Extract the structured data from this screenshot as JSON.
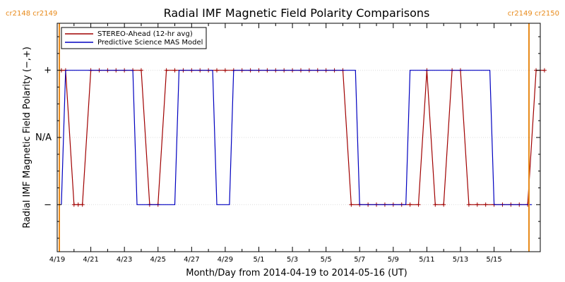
{
  "chart_data": {
    "type": "line",
    "title": "Radial IMF Magnetic Field Polarity Comparisons",
    "xlabel": "Month/Day from 2014-04-19 to 2014-05-16 (UT)",
    "ylabel": "Radial IMF Magnetic Field Polarity (−,+)",
    "x_start": "2014-04-19",
    "xlim": [
      "2014-04-19",
      "2014-05-17T18:00"
    ],
    "y_categories": [
      "−",
      "N/A",
      "+"
    ],
    "ylim": [
      -1.7,
      1.7
    ],
    "x_tick_labels": [
      "4/19",
      "4/21",
      "4/23",
      "4/25",
      "4/27",
      "4/29",
      "5/1",
      "5/3",
      "5/5",
      "5/7",
      "5/9",
      "5/11",
      "5/13",
      "5/15"
    ],
    "carrington_left": "cr2148 cr2149",
    "carrington_right": "cr2149 cr2150",
    "carrington_colour": "#e88a1a",
    "legend_position": "top-left",
    "series": [
      {
        "name": "STEREO-Ahead (12-hr avg)",
        "color": "#a00000",
        "marker": "+",
        "points": [
          [
            "2014-04-19T06:00",
            1
          ],
          [
            "2014-04-19T12:00",
            1
          ],
          [
            "2014-04-20T00:00",
            -1
          ],
          [
            "2014-04-20T06:00",
            -1
          ],
          [
            "2014-04-20T12:00",
            -1
          ],
          [
            "2014-04-21T00:00",
            1
          ],
          [
            "2014-04-21T12:00",
            1
          ],
          [
            "2014-04-22T00:00",
            1
          ],
          [
            "2014-04-22T12:00",
            1
          ],
          [
            "2014-04-23T00:00",
            1
          ],
          [
            "2014-04-23T12:00",
            1
          ],
          [
            "2014-04-24T00:00",
            1
          ],
          [
            "2014-04-24T12:00",
            -1
          ],
          [
            "2014-04-25T00:00",
            -1
          ],
          [
            "2014-04-25T12:00",
            1
          ],
          [
            "2014-04-26T00:00",
            1
          ],
          [
            "2014-04-26T12:00",
            1
          ],
          [
            "2014-04-27T00:00",
            1
          ],
          [
            "2014-04-27T12:00",
            1
          ],
          [
            "2014-04-28T00:00",
            1
          ],
          [
            "2014-04-28T12:00",
            1
          ],
          [
            "2014-04-29T00:00",
            1
          ],
          [
            "2014-04-29T12:00",
            1
          ],
          [
            "2014-04-30T00:00",
            1
          ],
          [
            "2014-04-30T12:00",
            1
          ],
          [
            "2014-05-01T00:00",
            1
          ],
          [
            "2014-05-01T12:00",
            1
          ],
          [
            "2014-05-02T00:00",
            1
          ],
          [
            "2014-05-02T12:00",
            1
          ],
          [
            "2014-05-03T00:00",
            1
          ],
          [
            "2014-05-03T12:00",
            1
          ],
          [
            "2014-05-04T00:00",
            1
          ],
          [
            "2014-05-04T12:00",
            1
          ],
          [
            "2014-05-05T00:00",
            1
          ],
          [
            "2014-05-05T12:00",
            1
          ],
          [
            "2014-05-06T00:00",
            1
          ],
          [
            "2014-05-06T12:00",
            -1
          ],
          [
            "2014-05-07T00:00",
            -1
          ],
          [
            "2014-05-07T12:00",
            -1
          ],
          [
            "2014-05-08T00:00",
            -1
          ],
          [
            "2014-05-08T12:00",
            -1
          ],
          [
            "2014-05-09T00:00",
            -1
          ],
          [
            "2014-05-09T12:00",
            -1
          ],
          [
            "2014-05-10T00:00",
            -1
          ],
          [
            "2014-05-10T12:00",
            -1
          ],
          [
            "2014-05-11T00:00",
            1
          ],
          [
            "2014-05-11T12:00",
            -1
          ],
          [
            "2014-05-12T00:00",
            -1
          ],
          [
            "2014-05-12T12:00",
            1
          ],
          [
            "2014-05-13T00:00",
            1
          ],
          [
            "2014-05-13T12:00",
            -1
          ],
          [
            "2014-05-14T00:00",
            -1
          ],
          [
            "2014-05-14T12:00",
            -1
          ],
          [
            "2014-05-15T00:00",
            -1
          ],
          [
            "2014-05-15T12:00",
            -1
          ],
          [
            "2014-05-16T00:00",
            -1
          ],
          [
            "2014-05-16T12:00",
            -1
          ],
          [
            "2014-05-17T00:00",
            -1
          ],
          [
            "2014-05-17T12:00",
            1
          ],
          [
            "2014-05-18T00:00",
            1
          ]
        ]
      },
      {
        "name": "Predictive Science MAS Model",
        "color": "#0000c0",
        "marker": "",
        "points": [
          [
            "2014-04-19T06:00",
            -1
          ],
          [
            "2014-04-19T12:00",
            1
          ],
          [
            "2014-04-23T12:00",
            1
          ],
          [
            "2014-04-23T18:00",
            -1
          ],
          [
            "2014-04-26T00:00",
            -1
          ],
          [
            "2014-04-26T06:00",
            1
          ],
          [
            "2014-04-28T06:00",
            1
          ],
          [
            "2014-04-28T12:00",
            -1
          ],
          [
            "2014-04-29T06:00",
            -1
          ],
          [
            "2014-04-29T12:00",
            1
          ],
          [
            "2014-05-06T18:00",
            1
          ],
          [
            "2014-05-07T00:00",
            -1
          ],
          [
            "2014-05-09T18:00",
            -1
          ],
          [
            "2014-05-10T00:00",
            1
          ],
          [
            "2014-05-14T18:00",
            1
          ],
          [
            "2014-05-15T00:00",
            -1
          ],
          [
            "2014-05-17T06:00",
            -1
          ]
        ]
      }
    ]
  }
}
